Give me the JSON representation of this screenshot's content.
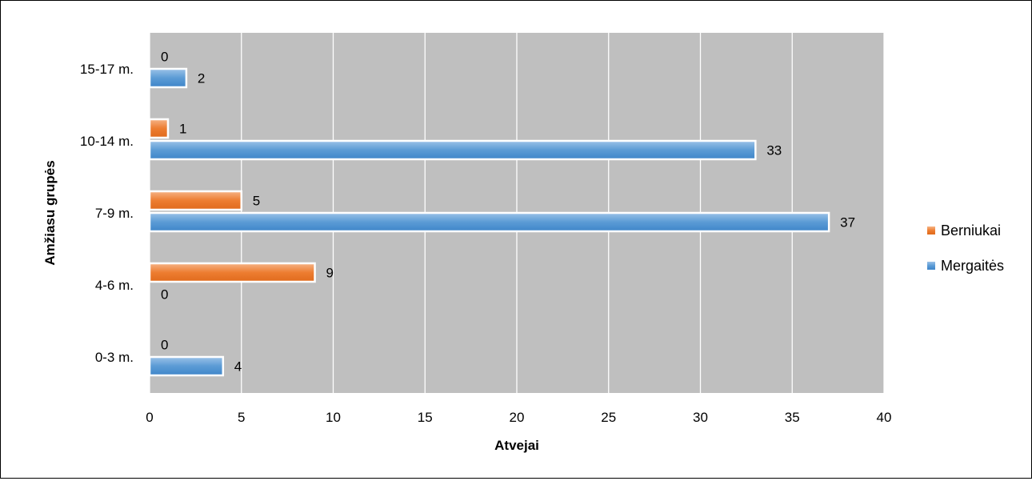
{
  "chart_data": {
    "type": "bar",
    "orientation": "horizontal",
    "categories": [
      "0-3 m.",
      "4-6 m.",
      "7-9 m.",
      "10-14 m.",
      "15-17 m."
    ],
    "series": [
      {
        "name": "Berniukai",
        "values": [
          0,
          9,
          5,
          1,
          0
        ],
        "color": "#ED7D31"
      },
      {
        "name": "Mergaitės",
        "values": [
          4,
          0,
          37,
          33,
          2
        ],
        "color": "#5B9BD5"
      }
    ],
    "xlabel": "Atvejai",
    "ylabel": "Amžiasu grupės",
    "xlim": [
      0,
      40
    ],
    "xticks": [
      0,
      5,
      10,
      15,
      20,
      25,
      30,
      35,
      40
    ],
    "grid": true,
    "plot_background": "#BFBFBF",
    "legend_position": "right"
  }
}
